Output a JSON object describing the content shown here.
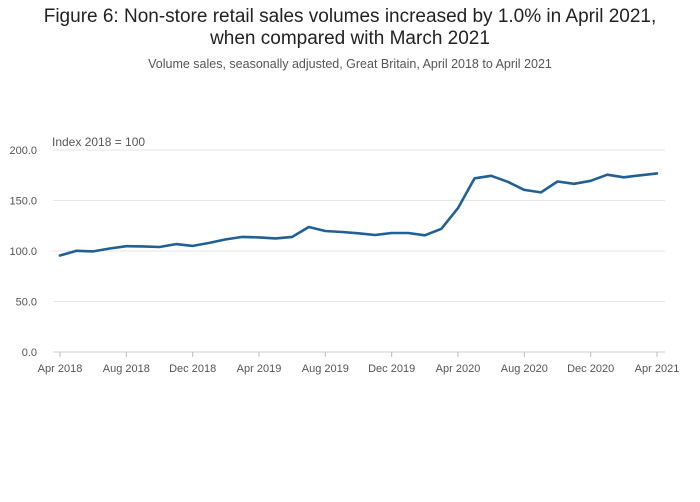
{
  "chart_data": {
    "type": "line",
    "title_line1": "Figure 6: Non-store retail sales volumes increased by 1.0% in April 2021,",
    "title_line2": "when compared with March 2021",
    "subtitle": "Volume sales, seasonally adjusted, Great Britain, April 2018 to April 2021",
    "ylabel": "Index 2018 = 100",
    "ylim": [
      0,
      200
    ],
    "yticks": [
      "0.0",
      "50.0",
      "100.0",
      "150.0",
      "200.0"
    ],
    "xtick_labels": [
      "Apr 2018",
      "Aug 2018",
      "Dec 2018",
      "Apr 2019",
      "Aug 2019",
      "Dec 2019",
      "Apr 2020",
      "Aug 2020",
      "Dec 2020",
      "Apr 2021"
    ],
    "grid": true,
    "line_color": "#206095",
    "x": [
      "Apr 2018",
      "May 2018",
      "Jun 2018",
      "Jul 2018",
      "Aug 2018",
      "Sep 2018",
      "Oct 2018",
      "Nov 2018",
      "Dec 2018",
      "Jan 2019",
      "Feb 2019",
      "Mar 2019",
      "Apr 2019",
      "May 2019",
      "Jun 2019",
      "Jul 2019",
      "Aug 2019",
      "Sep 2019",
      "Oct 2019",
      "Nov 2019",
      "Dec 2019",
      "Jan 2020",
      "Feb 2020",
      "Mar 2020",
      "Apr 2020",
      "May 2020",
      "Jun 2020",
      "Jul 2020",
      "Aug 2020",
      "Sep 2020",
      "Oct 2020",
      "Nov 2020",
      "Dec 2020",
      "Jan 2021",
      "Feb 2021",
      "Mar 2021",
      "Apr 2021"
    ],
    "series": [
      {
        "values": [
          95.5,
          100.2,
          99.6,
          102.5,
          104.8,
          104.6,
          104.0,
          106.8,
          105.0,
          108.0,
          111.5,
          114.0,
          113.5,
          112.5,
          114.0,
          123.8,
          119.8,
          118.8,
          117.5,
          115.8,
          117.8,
          117.8,
          115.5,
          122.0,
          142.5,
          172.0,
          174.5,
          168.5,
          160.5,
          158.0,
          168.8,
          166.5,
          169.5,
          175.5,
          173.0,
          175.0,
          176.8
        ]
      }
    ]
  }
}
